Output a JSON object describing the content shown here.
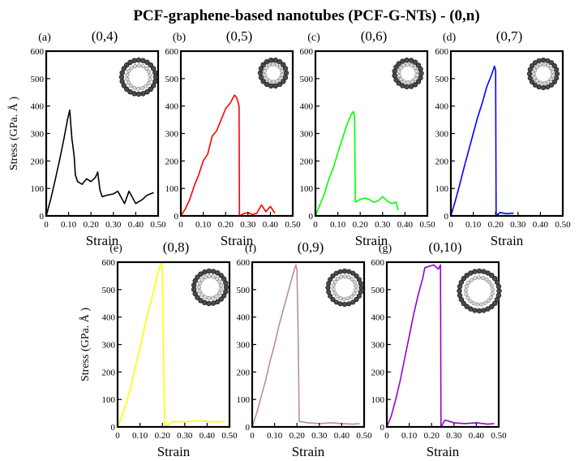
{
  "figure": {
    "title": "PCF-graphene-based nanotubes (PCF-G-NTs) - (0,n)",
    "xlabel": "Strain",
    "ylabel": "Stress (GPa. Å )"
  },
  "chart_data": [
    {
      "type": "line",
      "panel": "(a)",
      "chirality": "(0,4)",
      "color": "#000000",
      "xlim": [
        0,
        0.5
      ],
      "ylim": [
        0,
        600
      ],
      "x_ticks": [
        "0",
        "0.10",
        "0.20",
        "0.30",
        "0.40",
        "0.50"
      ],
      "y_ticks": [
        "0",
        "100",
        "200",
        "300",
        "400",
        "500",
        "600"
      ],
      "points": [
        [
          0,
          0
        ],
        [
          0.02,
          60
        ],
        [
          0.04,
          130
        ],
        [
          0.06,
          205
        ],
        [
          0.08,
          285
        ],
        [
          0.095,
          350
        ],
        [
          0.105,
          385
        ],
        [
          0.11,
          330
        ],
        [
          0.115,
          280
        ],
        [
          0.12,
          250
        ],
        [
          0.125,
          215
        ],
        [
          0.13,
          150
        ],
        [
          0.14,
          125
        ],
        [
          0.16,
          115
        ],
        [
          0.18,
          135
        ],
        [
          0.2,
          125
        ],
        [
          0.22,
          140
        ],
        [
          0.23,
          160
        ],
        [
          0.24,
          95
        ],
        [
          0.25,
          70
        ],
        [
          0.27,
          75
        ],
        [
          0.3,
          80
        ],
        [
          0.32,
          90
        ],
        [
          0.34,
          60
        ],
        [
          0.35,
          45
        ],
        [
          0.37,
          90
        ],
        [
          0.4,
          45
        ],
        [
          0.43,
          60
        ],
        [
          0.45,
          75
        ],
        [
          0.48,
          85
        ]
      ]
    },
    {
      "type": "line",
      "panel": "(b)",
      "chirality": "(0,5)",
      "color": "#ff0000",
      "xlim": [
        0,
        0.5
      ],
      "ylim": [
        0,
        600
      ],
      "x_ticks": [
        "0",
        "0.10",
        "0.20",
        "0.30",
        "0.40",
        "0.50"
      ],
      "y_ticks": [
        "0",
        "100",
        "200",
        "300",
        "400",
        "500",
        "600"
      ],
      "points": [
        [
          0,
          0
        ],
        [
          0.02,
          25
        ],
        [
          0.04,
          60
        ],
        [
          0.06,
          110
        ],
        [
          0.08,
          150
        ],
        [
          0.1,
          200
        ],
        [
          0.12,
          225
        ],
        [
          0.14,
          290
        ],
        [
          0.16,
          310
        ],
        [
          0.18,
          350
        ],
        [
          0.2,
          390
        ],
        [
          0.22,
          410
        ],
        [
          0.24,
          440
        ],
        [
          0.25,
          430
        ],
        [
          0.255,
          415
        ],
        [
          0.26,
          400
        ],
        [
          0.262,
          0
        ],
        [
          0.28,
          8
        ],
        [
          0.3,
          12
        ],
        [
          0.32,
          5
        ],
        [
          0.34,
          10
        ],
        [
          0.36,
          40
        ],
        [
          0.38,
          15
        ],
        [
          0.4,
          35
        ],
        [
          0.42,
          10
        ]
      ]
    },
    {
      "type": "line",
      "panel": "(c)",
      "chirality": "(0,6)",
      "color": "#00ff00",
      "xlim": [
        0,
        0.5
      ],
      "ylim": [
        0,
        600
      ],
      "x_ticks": [
        "0",
        "0.10",
        "0.20",
        "0.30",
        "0.40",
        "0.50"
      ],
      "y_ticks": [
        "0",
        "100",
        "200",
        "300",
        "400",
        "500",
        "600"
      ],
      "points": [
        [
          0,
          0
        ],
        [
          0.02,
          40
        ],
        [
          0.04,
          80
        ],
        [
          0.06,
          135
        ],
        [
          0.08,
          175
        ],
        [
          0.1,
          230
        ],
        [
          0.12,
          280
        ],
        [
          0.14,
          330
        ],
        [
          0.16,
          370
        ],
        [
          0.17,
          380
        ],
        [
          0.175,
          360
        ],
        [
          0.178,
          50
        ],
        [
          0.2,
          60
        ],
        [
          0.22,
          65
        ],
        [
          0.24,
          60
        ],
        [
          0.26,
          50
        ],
        [
          0.28,
          55
        ],
        [
          0.3,
          70
        ],
        [
          0.32,
          55
        ],
        [
          0.34,
          45
        ],
        [
          0.36,
          50
        ],
        [
          0.37,
          20
        ]
      ]
    },
    {
      "type": "line",
      "panel": "(d)",
      "chirality": "(0,7)",
      "color": "#0000ff",
      "xlim": [
        0,
        0.5
      ],
      "ylim": [
        0,
        600
      ],
      "x_ticks": [
        "0",
        "0.10",
        "0.20",
        "0.30",
        "0.40",
        "0.50"
      ],
      "y_ticks": [
        "0",
        "100",
        "200",
        "300",
        "400",
        "500",
        "600"
      ],
      "points": [
        [
          0,
          0
        ],
        [
          0.02,
          55
        ],
        [
          0.04,
          115
        ],
        [
          0.06,
          180
        ],
        [
          0.08,
          240
        ],
        [
          0.1,
          300
        ],
        [
          0.12,
          360
        ],
        [
          0.14,
          410
        ],
        [
          0.16,
          470
        ],
        [
          0.18,
          510
        ],
        [
          0.195,
          545
        ],
        [
          0.2,
          530
        ],
        [
          0.202,
          0
        ],
        [
          0.22,
          12
        ],
        [
          0.25,
          8
        ],
        [
          0.28,
          10
        ]
      ]
    },
    {
      "type": "line",
      "panel": "(e)",
      "chirality": "(0,8)",
      "color": "#ffff00",
      "xlim": [
        0,
        0.5
      ],
      "ylim": [
        0,
        600
      ],
      "x_ticks": [
        "0",
        "0.10",
        "0.20",
        "0.30",
        "0.40",
        "0.50"
      ],
      "y_ticks": [
        "0",
        "100",
        "200",
        "300",
        "400",
        "500",
        "600"
      ],
      "points": [
        [
          0,
          0
        ],
        [
          0.02,
          40
        ],
        [
          0.04,
          90
        ],
        [
          0.06,
          150
        ],
        [
          0.08,
          220
        ],
        [
          0.1,
          290
        ],
        [
          0.12,
          360
        ],
        [
          0.14,
          430
        ],
        [
          0.16,
          490
        ],
        [
          0.18,
          560
        ],
        [
          0.195,
          600
        ],
        [
          0.2,
          570
        ],
        [
          0.21,
          0
        ],
        [
          0.25,
          20
        ],
        [
          0.3,
          18
        ],
        [
          0.35,
          22
        ],
        [
          0.4,
          20
        ],
        [
          0.45,
          18
        ],
        [
          0.48,
          20
        ]
      ]
    },
    {
      "type": "line",
      "panel": "(f)",
      "chirality": "(0,9)",
      "color": "#bc8f8f",
      "xlim": [
        0,
        0.5
      ],
      "ylim": [
        0,
        600
      ],
      "x_ticks": [
        "0",
        "0.10",
        "0.20",
        "0.30",
        "0.40",
        "0.50"
      ],
      "y_ticks": [
        "0",
        "100",
        "200",
        "300",
        "400",
        "500",
        "600"
      ],
      "points": [
        [
          0,
          0
        ],
        [
          0.02,
          50
        ],
        [
          0.04,
          110
        ],
        [
          0.06,
          170
        ],
        [
          0.08,
          240
        ],
        [
          0.1,
          300
        ],
        [
          0.12,
          370
        ],
        [
          0.14,
          430
        ],
        [
          0.16,
          490
        ],
        [
          0.18,
          550
        ],
        [
          0.195,
          590
        ],
        [
          0.2,
          570
        ],
        [
          0.205,
          350
        ],
        [
          0.21,
          20
        ],
        [
          0.25,
          15
        ],
        [
          0.3,
          12
        ],
        [
          0.35,
          15
        ],
        [
          0.4,
          12
        ],
        [
          0.45,
          10
        ],
        [
          0.48,
          12
        ]
      ]
    },
    {
      "type": "line",
      "panel": "(g)",
      "chirality": "(0,10)",
      "color": "#9400d3",
      "xlim": [
        0,
        0.5
      ],
      "ylim": [
        0,
        600
      ],
      "x_ticks": [
        "0",
        "0.10",
        "0.20",
        "0.30",
        "0.40",
        "0.50"
      ],
      "y_ticks": [
        "0",
        "100",
        "200",
        "300",
        "400",
        "500",
        "600"
      ],
      "points": [
        [
          0,
          0
        ],
        [
          0.02,
          40
        ],
        [
          0.04,
          100
        ],
        [
          0.06,
          170
        ],
        [
          0.08,
          250
        ],
        [
          0.1,
          330
        ],
        [
          0.12,
          410
        ],
        [
          0.14,
          480
        ],
        [
          0.16,
          540
        ],
        [
          0.17,
          580
        ],
        [
          0.19,
          585
        ],
        [
          0.21,
          590
        ],
        [
          0.23,
          575
        ],
        [
          0.24,
          590
        ],
        [
          0.242,
          0
        ],
        [
          0.26,
          25
        ],
        [
          0.28,
          20
        ],
        [
          0.3,
          15
        ],
        [
          0.35,
          12
        ],
        [
          0.4,
          15
        ],
        [
          0.45,
          10
        ],
        [
          0.48,
          12
        ]
      ]
    }
  ]
}
